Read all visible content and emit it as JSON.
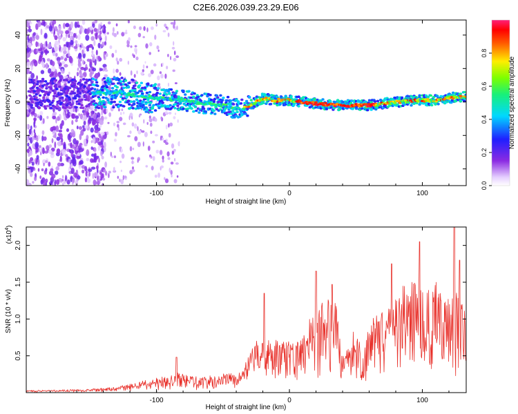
{
  "title": "C2E6.2026.039.23.29.E06",
  "chart_data": [
    {
      "type": "heatmap",
      "title": "C2E6.2026.039.23.29.E06",
      "xlabel": "Height of straight line (km)",
      "ylabel": "Frequency (Hz)",
      "xlim": [
        -198,
        133
      ],
      "ylim": [
        -50,
        49
      ],
      "xticks": [
        -100,
        0,
        100
      ],
      "yticks": [
        -40,
        -20,
        0,
        20,
        40
      ],
      "ridge": {
        "x": [
          -148,
          -130,
          -110,
          -95,
          -80,
          -65,
          -50,
          -40,
          -35,
          -30,
          -25,
          -20,
          -10,
          0,
          10,
          20,
          40,
          60,
          70,
          80,
          95,
          110,
          125,
          133
        ],
        "freq": [
          5,
          6,
          3,
          2,
          1,
          -1,
          -2,
          -4,
          -4,
          -2,
          0,
          2,
          1,
          1,
          0,
          -1,
          -2,
          -2,
          -1,
          0,
          1,
          1,
          3,
          3
        ]
      },
      "colorbar": {
        "label": "Normalized spectral amplitude",
        "range": [
          0.0,
          1.0
        ],
        "ticks": [
          0.0,
          0.2,
          0.4,
          0.6,
          0.8
        ],
        "tick_labels": [
          "0.0",
          "0.2",
          "0.4",
          "0.6",
          "0.8"
        ],
        "colormap": "rainbow (white → violet → blue → cyan → green → yellow → red → magenta)"
      }
    },
    {
      "type": "line",
      "xlabel": "Height of straight line (km)",
      "ylabel": "SNR (10 * v/v)",
      "y_multiplier_label": "(x10",
      "y_multiplier_exp": "4",
      "y_multiplier_close": ")",
      "xlim": [
        -198,
        133
      ],
      "ylim": [
        0,
        2.25
      ],
      "xticks": [
        -100,
        0,
        100
      ],
      "yticks": [
        0.5,
        1.0,
        1.5,
        2.0
      ],
      "ytick_labels": [
        "0.5",
        "1.0",
        "1.5",
        "2.0"
      ],
      "color": "#e8302a",
      "envelope": {
        "x": [
          -198,
          -170,
          -150,
          -130,
          -120,
          -110,
          -100,
          -90,
          -85,
          -80,
          -70,
          -60,
          -50,
          -40,
          -35,
          -30,
          -25,
          -20,
          -15,
          -10,
          -5,
          0,
          5,
          10,
          15,
          20,
          25,
          30,
          35,
          40,
          45,
          50,
          55,
          60,
          65,
          70,
          75,
          80,
          85,
          90,
          95,
          100,
          105,
          110,
          115,
          120,
          125,
          130,
          133
        ],
        "y": [
          0.03,
          0.04,
          0.05,
          0.08,
          0.12,
          0.16,
          0.2,
          0.24,
          0.3,
          0.25,
          0.22,
          0.23,
          0.26,
          0.26,
          0.3,
          0.55,
          0.75,
          0.7,
          0.72,
          0.75,
          0.72,
          0.72,
          0.68,
          0.75,
          1.0,
          1.05,
          1.3,
          1.35,
          1.2,
          0.5,
          0.7,
          1.0,
          0.55,
          1.0,
          1.05,
          1.1,
          1.2,
          1.55,
          1.5,
          1.5,
          1.6,
          1.5,
          1.55,
          1.7,
          1.2,
          1.4,
          1.4,
          1.3,
          1.0
        ]
      },
      "peaks": [
        {
          "x": -85,
          "y": 0.48
        },
        {
          "x": -19,
          "y": 1.35
        },
        {
          "x": 20,
          "y": 1.65
        },
        {
          "x": 32,
          "y": 1.47
        },
        {
          "x": 77,
          "y": 1.75
        },
        {
          "x": 98,
          "y": 2.05
        },
        {
          "x": 124,
          "y": 2.25
        },
        {
          "x": 128,
          "y": 1.8
        }
      ]
    }
  ]
}
